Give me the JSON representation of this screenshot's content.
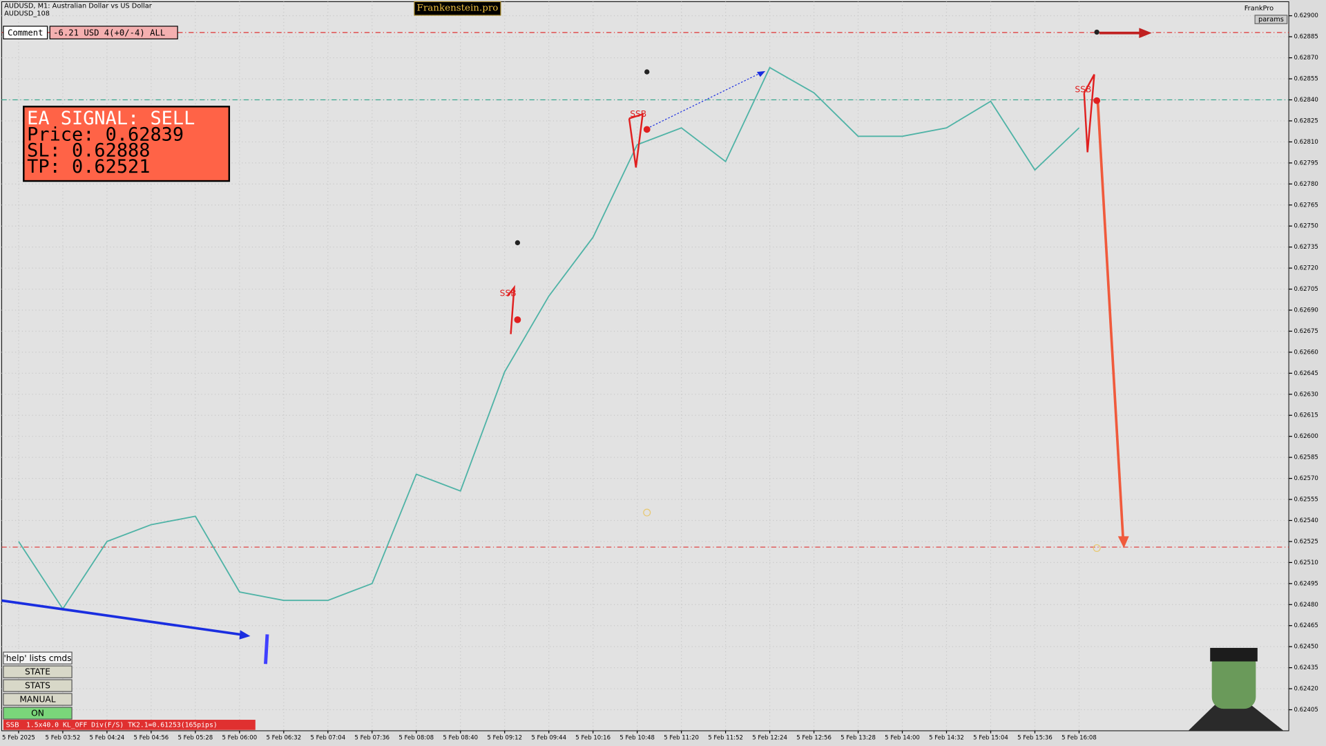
{
  "header": {
    "symbol": "AUDUSD, M1:  Australian Dollar vs US Dollar",
    "account": "AUDUSD_108",
    "brand": "Frankenstein.pro",
    "user": "FrankPro",
    "params": "params"
  },
  "comment": {
    "label": "Comment",
    "text": "-6.21 USD 4(+0/-4) ALL"
  },
  "signal": {
    "title": "EA SIGNAL: SELL",
    "price": "Price: 0.62839",
    "sl": "SL:     0.62888",
    "tp": "TP:     0.62521"
  },
  "buttons": [
    "'help' lists cmds",
    "STATE",
    "STATS",
    "MANUAL",
    "ON"
  ],
  "status": {
    "tag": "SSB",
    "text": "1.5x40.0 KL_OFF Div(F/S) TK2.1=0.61253(165pips)"
  },
  "annotations": [
    "SSB",
    "SSB",
    "SSB"
  ],
  "chart_data": {
    "type": "line",
    "color": "#4fb3a6",
    "categories": [
      "5 Feb 2025",
      "5 Feb 03:52",
      "5 Feb 04:24",
      "5 Feb 04:56",
      "5 Feb 05:28",
      "5 Feb 06:00",
      "5 Feb 06:32",
      "5 Feb 07:04",
      "5 Feb 07:36",
      "5 Feb 08:08",
      "5 Feb 08:40",
      "5 Feb 09:12",
      "5 Feb 09:44",
      "5 Feb 10:16",
      "5 Feb 10:48",
      "5 Feb 11:20",
      "5 Feb 11:52",
      "5 Feb 12:24",
      "5 Feb 12:56",
      "5 Feb 13:28",
      "5 Feb 14:00",
      "5 Feb 14:32",
      "5 Feb 15:04",
      "5 Feb 15:36",
      "5 Feb 16:08"
    ],
    "values": [
      0.62525,
      0.62477,
      0.62525,
      0.62537,
      0.62543,
      0.62489,
      0.62483,
      0.62483,
      0.62495,
      0.62573,
      0.62561,
      0.62646,
      0.627,
      0.62742,
      0.62808,
      0.6282,
      0.62796,
      0.62863,
      0.62845,
      0.62814,
      0.62814,
      0.6282,
      0.62839,
      0.6279,
      0.6282
    ],
    "ylim": [
      0.6239,
      0.6291
    ],
    "yticks": [
      {
        "value": 0.629,
        "label": "0.62900"
      },
      {
        "value": 0.62885,
        "label": "0.62885"
      },
      {
        "value": 0.6287,
        "label": "0.62870"
      },
      {
        "value": 0.62855,
        "label": "0.62855"
      },
      {
        "value": 0.6284,
        "label": "0.62840"
      },
      {
        "value": 0.62825,
        "label": "0.62825"
      },
      {
        "value": 0.6281,
        "label": "0.62810"
      },
      {
        "value": 0.62795,
        "label": "0.62795"
      },
      {
        "value": 0.6278,
        "label": "0.62780"
      },
      {
        "value": 0.62765,
        "label": "0.62765"
      },
      {
        "value": 0.6275,
        "label": "0.62750"
      },
      {
        "value": 0.62735,
        "label": "0.62735"
      },
      {
        "value": 0.6272,
        "label": "0.62720"
      },
      {
        "value": 0.62705,
        "label": "0.62705"
      },
      {
        "value": 0.6269,
        "label": "0.62690"
      },
      {
        "value": 0.62675,
        "label": "0.62675"
      },
      {
        "value": 0.6266,
        "label": "0.62660"
      },
      {
        "value": 0.62645,
        "label": "0.62645"
      },
      {
        "value": 0.6263,
        "label": "0.62630"
      },
      {
        "value": 0.62615,
        "label": "0.62615"
      },
      {
        "value": 0.626,
        "label": "0.62600"
      },
      {
        "value": 0.62585,
        "label": "0.62585"
      },
      {
        "value": 0.6257,
        "label": "0.62570"
      },
      {
        "value": 0.62555,
        "label": "0.62555"
      },
      {
        "value": 0.6254,
        "label": "0.62540"
      },
      {
        "value": 0.62525,
        "label": "0.62525"
      },
      {
        "value": 0.6251,
        "label": "0.62510"
      },
      {
        "value": 0.62495,
        "label": "0.62495"
      },
      {
        "value": 0.6248,
        "label": "0.62480"
      },
      {
        "value": 0.62465,
        "label": "0.62465"
      },
      {
        "value": 0.6245,
        "label": "0.62450"
      },
      {
        "value": 0.62435,
        "label": "0.62435"
      },
      {
        "value": 0.6242,
        "label": "0.62420"
      },
      {
        "value": 0.62405,
        "label": "0.62405"
      }
    ],
    "hlines": [
      {
        "value": 0.62888,
        "color": "#e03030"
      },
      {
        "value": 0.62521,
        "color": "#e03030"
      },
      {
        "value": 0.6284,
        "color": "#3aa88f"
      }
    ],
    "grid": true
  }
}
